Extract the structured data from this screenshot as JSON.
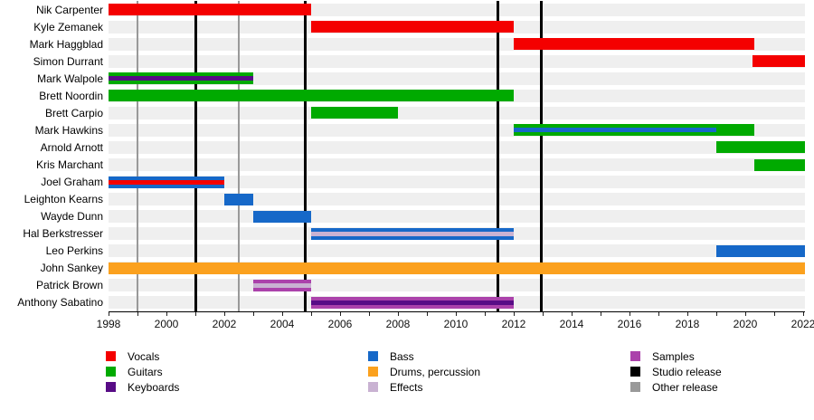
{
  "chart_data": {
    "type": "timeline",
    "title": "",
    "x_axis": {
      "start": 1998,
      "end": 2022,
      "tick_labels": [
        "1998",
        "2000",
        "2002",
        "2004",
        "2006",
        "2008",
        "2010",
        "2012",
        "2014",
        "2016",
        "2018",
        "2020",
        "2022"
      ],
      "labeled_tick_interval": 2,
      "minor_tick_interval": 1
    },
    "colors": {
      "vocals": "#f40000",
      "guitars": "#00aa00",
      "keyboards": "#580c86",
      "bass": "#1668c8",
      "drums": "#fba11e",
      "effects": "#c9b2d2",
      "samples": "#ab42ab",
      "studio": "#000000",
      "other": "#999999",
      "row_band": "#efefef"
    },
    "members": [
      {
        "name": "Nik Carpenter",
        "bars": [
          {
            "start": 1998,
            "end": 2005,
            "role": "vocals"
          }
        ]
      },
      {
        "name": "Kyle Zemanek",
        "bars": [
          {
            "start": 2005,
            "end": 2012,
            "role": "vocals"
          }
        ]
      },
      {
        "name": "Mark Haggblad",
        "bars": [
          {
            "start": 2012,
            "end": 2020.3,
            "role": "vocals"
          }
        ]
      },
      {
        "name": "Simon Durrant",
        "bars": [
          {
            "start": 2020.25,
            "end": "present",
            "role": "vocals"
          }
        ]
      },
      {
        "name": "Mark Walpole",
        "bars": [
          {
            "start": 1998,
            "end": 2003,
            "role": "guitars",
            "stripe": "keyboards"
          }
        ]
      },
      {
        "name": "Brett Noordin",
        "bars": [
          {
            "start": 1998,
            "end": 2012,
            "role": "guitars"
          }
        ]
      },
      {
        "name": "Brett Carpio",
        "bars": [
          {
            "start": 2005,
            "end": 2008,
            "role": "guitars"
          }
        ]
      },
      {
        "name": "Mark Hawkins",
        "bars": [
          {
            "start": 2012,
            "end": 2020.3,
            "role": "guitars",
            "stripe": "bass",
            "stripe_start": 2012,
            "stripe_end": 2019
          }
        ]
      },
      {
        "name": "Arnold Arnott",
        "bars": [
          {
            "start": 2019,
            "end": "present",
            "role": "guitars"
          }
        ]
      },
      {
        "name": "Kris Marchant",
        "bars": [
          {
            "start": 2020.3,
            "end": "present",
            "role": "guitars"
          }
        ]
      },
      {
        "name": "Joel Graham",
        "bars": [
          {
            "start": 1998,
            "end": 2002,
            "role": "bass",
            "stripe": "vocals"
          }
        ]
      },
      {
        "name": "Leighton Kearns",
        "bars": [
          {
            "start": 2002,
            "end": 2003,
            "role": "bass"
          }
        ]
      },
      {
        "name": "Wayde Dunn",
        "bars": [
          {
            "start": 2003,
            "end": 2005,
            "role": "bass"
          }
        ]
      },
      {
        "name": "Hal Berkstresser",
        "bars": [
          {
            "start": 2005,
            "end": 2012,
            "role": "bass",
            "stripe": "effects"
          }
        ]
      },
      {
        "name": "Leo Perkins",
        "bars": [
          {
            "start": 2019,
            "end": "present",
            "role": "bass"
          }
        ]
      },
      {
        "name": "John Sankey",
        "bars": [
          {
            "start": 1998,
            "end": "present",
            "role": "drums"
          }
        ]
      },
      {
        "name": "Patrick Brown",
        "bars": [
          {
            "start": 2003,
            "end": 2005,
            "role": "samples",
            "stripe": "effects"
          }
        ]
      },
      {
        "name": "Anthony Sabatino",
        "bars": [
          {
            "start": 2005,
            "end": 2012,
            "role": "samples",
            "stripe": "keyboards"
          }
        ]
      }
    ],
    "releases": {
      "studio": [
        2001,
        2004.8,
        2011.45,
        2012.95
      ],
      "other": [
        1999,
        2002.5
      ]
    },
    "legend": {
      "columns": [
        [
          {
            "label": "Vocals",
            "color_key": "vocals"
          },
          {
            "label": "Guitars",
            "color_key": "guitars"
          },
          {
            "label": "Keyboards",
            "color_key": "keyboards"
          }
        ],
        [
          {
            "label": "Bass",
            "color_key": "bass"
          },
          {
            "label": "Drums, percussion",
            "color_key": "drums"
          },
          {
            "label": "Effects",
            "color_key": "effects"
          }
        ],
        [
          {
            "label": "Samples",
            "color_key": "samples"
          },
          {
            "label": "Studio release",
            "color_key": "studio"
          },
          {
            "label": "Other release",
            "color_key": "other"
          }
        ]
      ]
    }
  }
}
